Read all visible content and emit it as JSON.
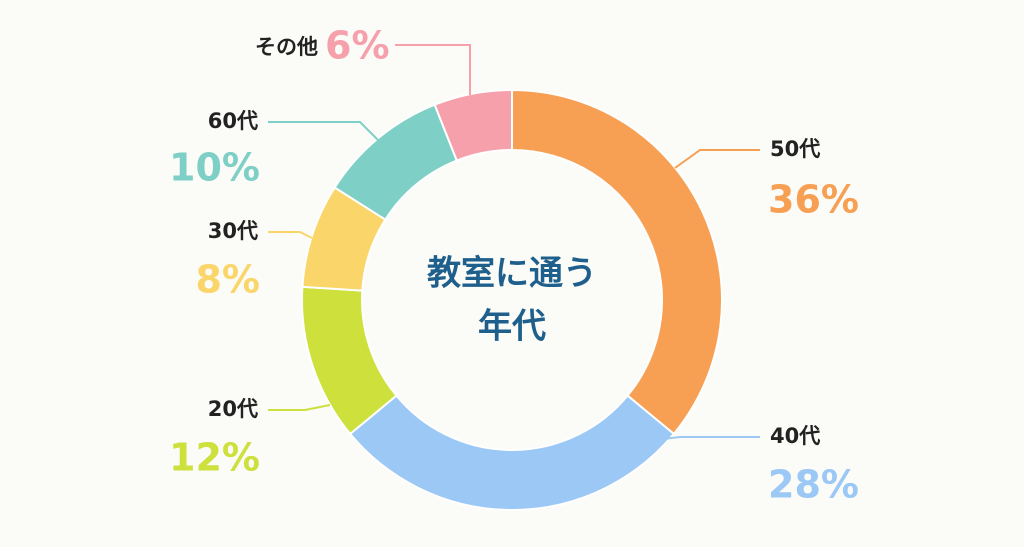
{
  "chart_data": {
    "type": "donut",
    "title": [
      "教室に通う",
      "年代"
    ],
    "categories": [
      "50代",
      "40代",
      "20代",
      "30代",
      "60代",
      "その他"
    ],
    "values": [
      36,
      28,
      12,
      8,
      10,
      6
    ],
    "value_labels": [
      "36%",
      "28%",
      "12%",
      "8%",
      "10%",
      "6%"
    ],
    "colors": [
      "#f7a054",
      "#9cc8f5",
      "#cde03c",
      "#fad66a",
      "#7ecfc5",
      "#f5a0aa"
    ]
  }
}
